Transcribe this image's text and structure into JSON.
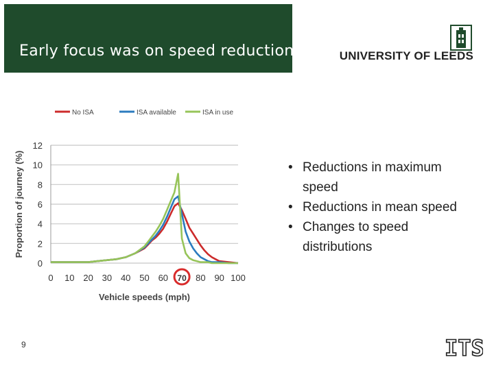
{
  "slide": {
    "title": "Early focus was on speed reduction",
    "university": "UNIVERSITY OF LEEDS",
    "page_number": "9",
    "bullets": [
      "Reductions in maximum speed",
      "Reductions in mean speed",
      "Changes to speed distributions"
    ],
    "its_logo_text": "ITS",
    "colors": {
      "header_green": "#1f4b2c"
    }
  },
  "chart_data": {
    "type": "line",
    "xlabel": "Vehicle speeds (mph)",
    "ylabel": "Proportion of journey (%)",
    "xlim": [
      0,
      100
    ],
    "ylim": [
      0,
      12
    ],
    "xticks": [
      "0",
      "10",
      "20",
      "30",
      "40",
      "50",
      "60",
      "70",
      "80",
      "90",
      "100"
    ],
    "yticks": [
      "0",
      "2",
      "4",
      "6",
      "8",
      "10",
      "12"
    ],
    "highlight_tick": "70",
    "grid": true,
    "legend_position": "top",
    "x": [
      0,
      5,
      10,
      15,
      20,
      25,
      30,
      35,
      40,
      45,
      50,
      52,
      54,
      56,
      58,
      60,
      62,
      64,
      66,
      68,
      70,
      72,
      74,
      76,
      78,
      80,
      82,
      84,
      86,
      88,
      90,
      95,
      100
    ],
    "series": [
      {
        "name": "No ISA",
        "color": "#cc2b2b",
        "values": [
          0.1,
          0.1,
          0.1,
          0.1,
          0.1,
          0.2,
          0.3,
          0.4,
          0.6,
          1.0,
          1.5,
          1.9,
          2.3,
          2.6,
          3.0,
          3.5,
          4.2,
          5.0,
          5.8,
          6.1,
          5.4,
          4.5,
          3.6,
          3.0,
          2.4,
          1.8,
          1.3,
          0.9,
          0.6,
          0.4,
          0.2,
          0.1,
          0.0
        ]
      },
      {
        "name": "ISA available",
        "color": "#2b7bbf",
        "values": [
          0.1,
          0.1,
          0.1,
          0.1,
          0.1,
          0.2,
          0.3,
          0.4,
          0.6,
          1.0,
          1.6,
          2.0,
          2.4,
          2.8,
          3.3,
          3.9,
          4.7,
          5.6,
          6.5,
          6.8,
          5.0,
          3.2,
          2.2,
          1.5,
          1.0,
          0.6,
          0.4,
          0.2,
          0.1,
          0.1,
          0.1,
          0.0,
          0.0
        ]
      },
      {
        "name": "ISA in use",
        "color": "#97c459",
        "values": [
          0.1,
          0.1,
          0.1,
          0.1,
          0.1,
          0.2,
          0.3,
          0.4,
          0.6,
          1.0,
          1.7,
          2.2,
          2.7,
          3.2,
          3.8,
          4.5,
          5.4,
          6.3,
          7.2,
          9.1,
          2.5,
          1.0,
          0.5,
          0.3,
          0.2,
          0.1,
          0.1,
          0.1,
          0.0,
          0.0,
          0.0,
          0.0,
          0.0
        ]
      }
    ]
  }
}
